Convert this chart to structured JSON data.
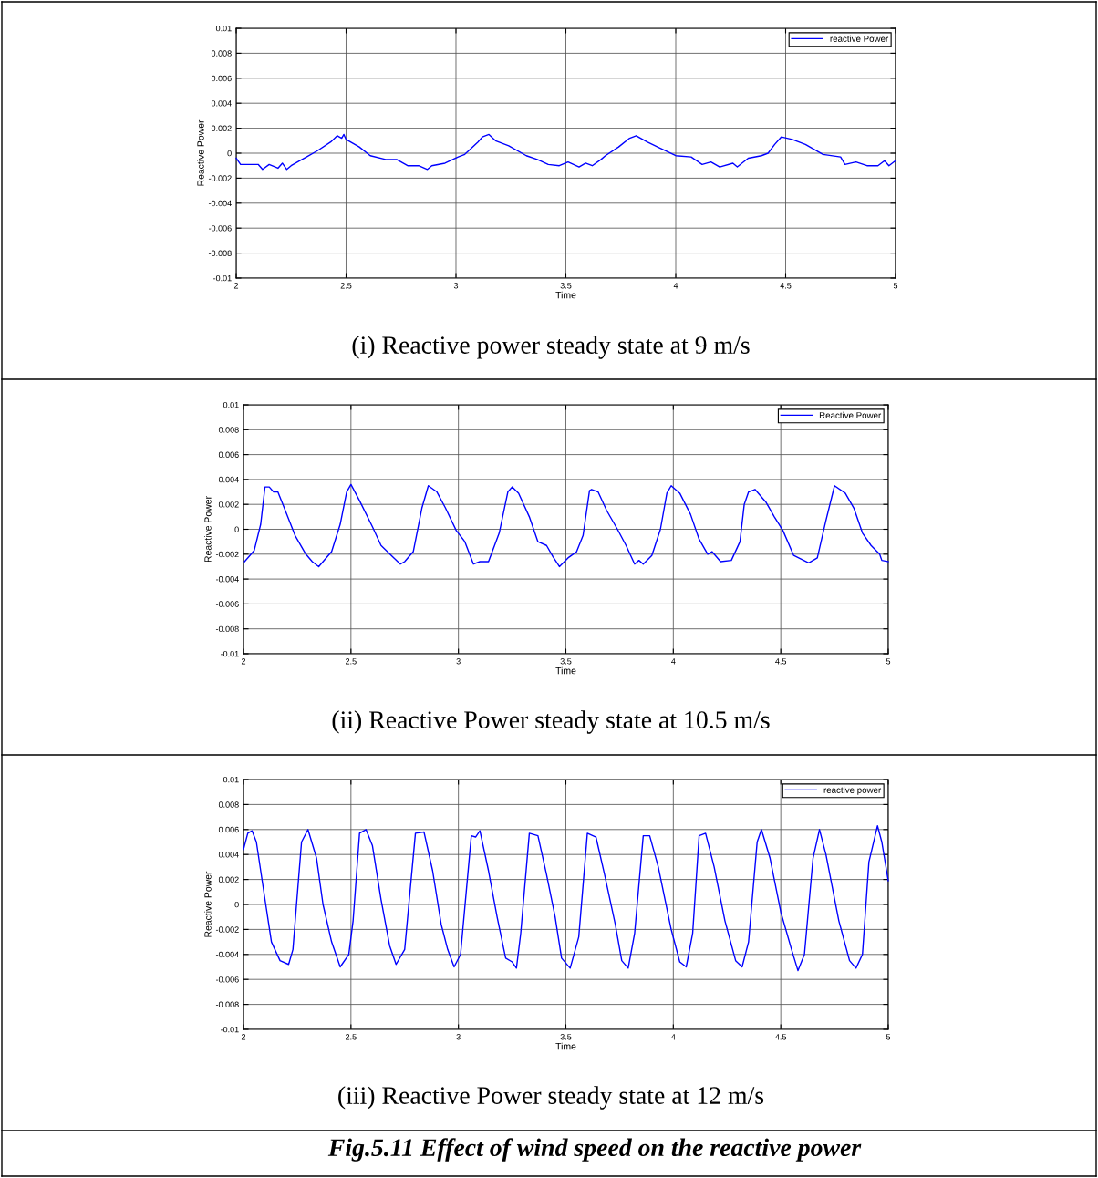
{
  "chart_data": [
    {
      "type": "line",
      "xlabel": "Time",
      "ylabel": "Reactive Power",
      "xlim": [
        2,
        5
      ],
      "ylim": [
        -0.01,
        0.01
      ],
      "xticks": [
        2,
        2.5,
        3,
        3.5,
        4,
        4.5,
        5
      ],
      "yticks": [
        -0.01,
        -0.008,
        -0.006,
        -0.004,
        -0.002,
        0,
        0.002,
        0.004,
        0.006,
        0.008,
        0.01
      ],
      "grid": true,
      "legend": "top right",
      "annotations": [
        "(i) Reactive power steady state at 9 m/s"
      ],
      "series": [
        {
          "name": "reactive Power",
          "color": "#0000ff",
          "x": [
            2.0,
            2.02,
            2.1,
            2.12,
            2.15,
            2.19,
            2.21,
            2.23,
            2.25,
            2.29,
            2.32,
            2.37,
            2.43,
            2.46,
            2.48,
            2.49,
            2.5,
            2.56,
            2.61,
            2.68,
            2.73,
            2.78,
            2.83,
            2.87,
            2.89,
            2.95,
            3.01,
            3.04,
            3.1,
            3.12,
            3.15,
            3.18,
            3.24,
            3.32,
            3.37,
            3.42,
            3.47,
            3.51,
            3.56,
            3.59,
            3.62,
            3.66,
            3.68,
            3.74,
            3.79,
            3.82,
            3.87,
            3.93,
            4.0,
            4.07,
            4.12,
            4.16,
            4.2,
            4.26,
            4.28,
            4.33,
            4.39,
            4.42,
            4.45,
            4.48,
            4.53,
            4.59,
            4.63,
            4.67,
            4.75,
            4.77,
            4.82,
            4.87,
            4.92,
            4.95,
            4.97,
            5.0
          ],
          "values": [
            -0.0004,
            -0.0009,
            -0.0009,
            -0.0013,
            -0.0009,
            -0.0012,
            -0.0008,
            -0.0013,
            -0.001,
            -0.0006,
            -0.0003,
            0.0002,
            0.0009,
            0.0014,
            0.0012,
            0.0015,
            0.0011,
            0.0005,
            -0.0002,
            -0.0005,
            -0.0005,
            -0.001,
            -0.001,
            -0.0013,
            -0.001,
            -0.0008,
            -0.0003,
            -0.0001,
            0.0009,
            0.0013,
            0.0015,
            0.001,
            0.0006,
            -0.0002,
            -0.0005,
            -0.0009,
            -0.001,
            -0.0007,
            -0.0011,
            -0.0008,
            -0.001,
            -0.0005,
            -0.0002,
            0.0005,
            0.0012,
            0.0014,
            0.0009,
            0.0004,
            -0.0002,
            -0.0003,
            -0.0009,
            -0.0007,
            -0.0011,
            -0.0008,
            -0.0011,
            -0.0004,
            -0.0002,
            0,
            0.0007,
            0.0013,
            0.0011,
            0.0007,
            0.0003,
            -0.0001,
            -0.0003,
            -0.0009,
            -0.0007,
            -0.001,
            -0.001,
            -0.0006,
            -0.001,
            -0.0006
          ]
        }
      ]
    },
    {
      "type": "line",
      "xlabel": "Time",
      "ylabel": "Reactive Power",
      "xlim": [
        2,
        5
      ],
      "ylim": [
        -0.01,
        0.01
      ],
      "xticks": [
        2,
        2.5,
        3,
        3.5,
        4,
        4.5,
        5
      ],
      "yticks": [
        -0.01,
        -0.008,
        -0.006,
        -0.004,
        -0.002,
        0,
        0.002,
        0.004,
        0.006,
        0.008,
        0.01
      ],
      "grid": true,
      "legend": "top right",
      "annotations": [
        "(ii) Reactive Power steady state at 10.5 m/s"
      ],
      "series": [
        {
          "name": "Reactive Power",
          "color": "#0000ff",
          "x": [
            2.005,
            2.05,
            2.08,
            2.1,
            2.12,
            2.14,
            2.16,
            2.19,
            2.24,
            2.29,
            2.32,
            2.35,
            2.37,
            2.41,
            2.45,
            2.48,
            2.5,
            2.54,
            2.6,
            2.64,
            2.7,
            2.73,
            2.75,
            2.79,
            2.83,
            2.86,
            2.9,
            2.94,
            2.99,
            3.03,
            3.07,
            3.1,
            3.14,
            3.19,
            3.23,
            3.25,
            3.28,
            3.33,
            3.37,
            3.41,
            3.44,
            3.47,
            3.51,
            3.55,
            3.58,
            3.61,
            3.62,
            3.65,
            3.69,
            3.74,
            3.78,
            3.82,
            3.84,
            3.86,
            3.9,
            3.94,
            3.97,
            3.99,
            4.03,
            4.08,
            4.12,
            4.16,
            4.18,
            4.22,
            4.27,
            4.31,
            4.33,
            4.35,
            4.38,
            4.43,
            4.47,
            4.51,
            4.56,
            4.63,
            4.67,
            4.71,
            4.75,
            4.8,
            4.84,
            4.88,
            4.92,
            4.96,
            4.97,
            5.0
          ],
          "values": [
            -0.0026,
            -0.0017,
            0.0004,
            0.0034,
            0.0034,
            0.003,
            0.003,
            0.0017,
            -0.0005,
            -0.002,
            -0.0026,
            -0.003,
            -0.0026,
            -0.0018,
            0.0004,
            0.003,
            0.0036,
            0.0023,
            0.0002,
            -0.0013,
            -0.0023,
            -0.0028,
            -0.0026,
            -0.0018,
            0.0017,
            0.0035,
            0.003,
            0.0017,
            -0.0001,
            -0.001,
            -0.0028,
            -0.0026,
            -0.0026,
            -0.0003,
            0.003,
            0.0034,
            0.0029,
            0.001,
            -0.001,
            -0.0013,
            -0.0022,
            -0.003,
            -0.0023,
            -0.0018,
            -0.0005,
            0.0031,
            0.0032,
            0.003,
            0.0015,
            0,
            -0.0013,
            -0.0028,
            -0.0025,
            -0.0028,
            -0.0021,
            0,
            0.0029,
            0.0035,
            0.0029,
            0.0012,
            -0.0008,
            -0.002,
            -0.0018,
            -0.0026,
            -0.0025,
            -0.001,
            0.002,
            0.003,
            0.0032,
            0.0022,
            0.001,
            -0.0001,
            -0.0021,
            -0.0027,
            -0.0023,
            0.0007,
            0.0035,
            0.0029,
            0.0017,
            -0.0003,
            -0.0013,
            -0.002,
            -0.0025,
            -0.0026
          ]
        }
      ]
    },
    {
      "type": "line",
      "xlabel": "Time",
      "ylabel": "Reactive Power",
      "xlim": [
        2,
        5
      ],
      "ylim": [
        -0.01,
        0.01
      ],
      "xticks": [
        2,
        2.5,
        3,
        3.5,
        4,
        4.5,
        5
      ],
      "yticks": [
        -0.01,
        -0.008,
        -0.006,
        -0.004,
        -0.002,
        0,
        0.002,
        0.004,
        0.006,
        0.008,
        0.01
      ],
      "grid": true,
      "legend": "top right",
      "annotations": [
        "(iii) Reactive Power steady state at 12 m/s",
        "Fig.5.11 Effect of wind speed on the reactive power"
      ],
      "series": [
        {
          "name": "reactive power",
          "color": "#0000ff",
          "x": [
            2.0,
            2.02,
            2.04,
            2.06,
            2.1,
            2.13,
            2.17,
            2.21,
            2.23,
            2.27,
            2.3,
            2.34,
            2.37,
            2.41,
            2.45,
            2.49,
            2.51,
            2.54,
            2.57,
            2.6,
            2.64,
            2.68,
            2.71,
            2.75,
            2.8,
            2.84,
            2.88,
            2.92,
            2.95,
            2.98,
            3.01,
            3.06,
            3.08,
            3.1,
            3.14,
            3.18,
            3.22,
            3.25,
            3.27,
            3.29,
            3.33,
            3.37,
            3.41,
            3.45,
            3.48,
            3.52,
            3.56,
            3.6,
            3.64,
            3.68,
            3.73,
            3.76,
            3.79,
            3.82,
            3.86,
            3.89,
            3.93,
            3.99,
            4.03,
            4.06,
            4.09,
            4.12,
            4.15,
            4.19,
            4.24,
            4.29,
            4.32,
            4.35,
            4.39,
            4.41,
            4.45,
            4.5,
            4.55,
            4.58,
            4.61,
            4.65,
            4.68,
            4.71,
            4.77,
            4.82,
            4.85,
            4.88,
            4.91,
            4.95,
            4.97,
            5.0
          ],
          "values": [
            0.0044,
            0.0057,
            0.0059,
            0.005,
            0.0004,
            -0.003,
            -0.0045,
            -0.0048,
            -0.0036,
            0.005,
            0.006,
            0.0037,
            0,
            -0.003,
            -0.005,
            -0.004,
            -0.0013,
            0.0057,
            0.006,
            0.0047,
            0.0004,
            -0.0033,
            -0.0048,
            -0.0036,
            0.0057,
            0.0058,
            0.0027,
            -0.0016,
            -0.0036,
            -0.005,
            -0.004,
            0.0055,
            0.0054,
            0.0059,
            0.0027,
            -0.001,
            -0.0043,
            -0.0046,
            -0.0051,
            -0.0023,
            0.0057,
            0.0055,
            0.0024,
            -0.001,
            -0.0043,
            -0.0051,
            -0.0026,
            0.0057,
            0.0054,
            0.0024,
            -0.0016,
            -0.0045,
            -0.0051,
            -0.0023,
            0.0055,
            0.0055,
            0.003,
            -0.002,
            -0.0046,
            -0.005,
            -0.0023,
            0.0055,
            0.0057,
            0.003,
            -0.0013,
            -0.0045,
            -0.005,
            -0.003,
            0.005,
            0.006,
            0.0037,
            -0.0006,
            -0.0036,
            -0.0053,
            -0.004,
            0.0037,
            0.006,
            0.004,
            -0.0013,
            -0.0045,
            -0.0051,
            -0.004,
            0.0034,
            0.0063,
            0.005,
            0.0019
          ]
        }
      ]
    }
  ]
}
